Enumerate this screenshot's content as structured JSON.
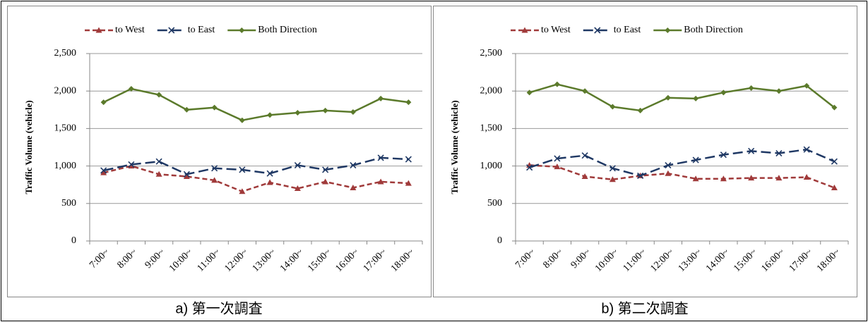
{
  "chart_data": [
    {
      "type": "line",
      "caption": "a) 第一次調査",
      "y_label": "Traffic Volume (vehicle)",
      "categories": [
        "7:00~",
        "8:00~",
        "9:00~",
        "10:00~",
        "11:00~",
        "12:00~",
        "13:00~",
        "14:00~",
        "15:00~",
        "16:00~",
        "17:00~",
        "18:00~"
      ],
      "series": [
        {
          "name": "to West",
          "color": "#a03a3a",
          "marker": "triangle",
          "dash": "7,4",
          "values": [
            910,
            1000,
            890,
            860,
            810,
            660,
            780,
            700,
            790,
            710,
            790,
            770
          ]
        },
        {
          "name": "to East",
          "color": "#1f3864",
          "marker": "x",
          "dash": "14,6",
          "values": [
            940,
            1020,
            1060,
            890,
            970,
            950,
            900,
            1010,
            950,
            1010,
            1110,
            1090
          ]
        },
        {
          "name": "Both Direction",
          "color": "#5b7a2b",
          "marker": "diamond",
          "dash": "none",
          "values": [
            1850,
            2030,
            1950,
            1750,
            1780,
            1610,
            1680,
            1710,
            1740,
            1720,
            1900,
            1850
          ]
        }
      ],
      "ylim": [
        0,
        2500
      ],
      "yticks": [
        0,
        500,
        {
          "value": 1000,
          "label": "1,000"
        },
        {
          "value": 1500,
          "label": "1,500"
        },
        {
          "value": 2000,
          "label": "2,000"
        },
        {
          "value": 2500,
          "label": "2,500"
        }
      ],
      "grid": true,
      "legend": "top"
    },
    {
      "type": "line",
      "caption": "b) 第二次調査",
      "y_label": "Traffic Volume (vehicle)",
      "categories": [
        "7:00~",
        "8:00~",
        "9:00~",
        "10:00~",
        "11:00~",
        "12:00~",
        "13:00~",
        "14:00~",
        "15:00~",
        "16:00~",
        "17:00~",
        "18:00~"
      ],
      "series": [
        {
          "name": "to West",
          "color": "#a03a3a",
          "marker": "triangle",
          "dash": "7,4",
          "values": [
            1010,
            990,
            860,
            820,
            870,
            900,
            830,
            830,
            840,
            840,
            850,
            710
          ]
        },
        {
          "name": "to East",
          "color": "#1f3864",
          "marker": "x",
          "dash": "14,6",
          "values": [
            980,
            1100,
            1140,
            970,
            870,
            1010,
            1080,
            1150,
            1200,
            1170,
            1220,
            1060
          ]
        },
        {
          "name": "Both Direction",
          "color": "#5b7a2b",
          "marker": "diamond",
          "dash": "none",
          "values": [
            1980,
            2090,
            2000,
            1790,
            1740,
            1910,
            1900,
            1980,
            2040,
            2000,
            2070,
            1780
          ]
        }
      ],
      "ylim": [
        0,
        2500
      ],
      "yticks": [
        0,
        500,
        {
          "value": 1000,
          "label": "1,000"
        },
        {
          "value": 1500,
          "label": "1,500"
        },
        {
          "value": 2000,
          "label": "2,000"
        },
        {
          "value": 2500,
          "label": "2,500"
        }
      ],
      "grid": true,
      "legend": "top"
    }
  ]
}
